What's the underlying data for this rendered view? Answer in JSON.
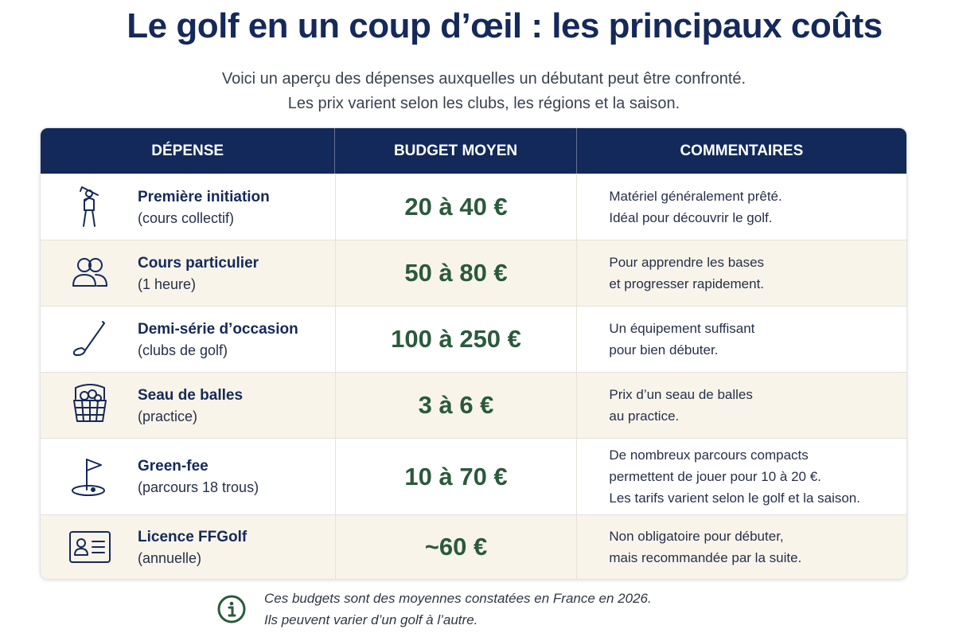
{
  "title": "Le golf en un coup d’œil : les principaux coûts",
  "subtitle": [
    "Voici un aperçu des dépenses auxquelles un débutant peut être confronté.",
    "Les prix varient selon les clubs, les régions et la saison."
  ],
  "table": {
    "headers": [
      "DÉPENSE",
      "BUDGET MOYEN",
      "COMMENTAIRES"
    ],
    "rows": [
      {
        "icon": "golfer-icon",
        "title": "Première initiation",
        "subtitle": "(cours collectif)",
        "budget": "20 à 40 €",
        "comment": [
          "Matériel généralement prêté.",
          "Idéal pour découvrir le golf."
        ]
      },
      {
        "icon": "people-icon",
        "title": "Cours particulier",
        "subtitle": "(1 heure)",
        "budget": "50 à 80 €",
        "comment": [
          "Pour apprendre les bases",
          "et progresser rapidement."
        ]
      },
      {
        "icon": "golf-club-icon",
        "title": "Demi-série d’occasion",
        "subtitle": "(clubs de golf)",
        "budget": "100 à 250 €",
        "comment": [
          "Un équipement suffisant",
          "pour bien débuter."
        ]
      },
      {
        "icon": "ball-basket-icon",
        "title": "Seau de balles",
        "subtitle": "(practice)",
        "budget": "3 à 6 €",
        "comment": [
          "Prix d’un seau de balles",
          "au practice."
        ]
      },
      {
        "icon": "flag-hole-icon",
        "title": "Green-fee",
        "subtitle": "(parcours 18 trous)",
        "budget": "10 à 70 €",
        "comment": [
          "De nombreux parcours compacts",
          "permettent de jouer pour 10 à 20 €.",
          "Les tarifs varient selon le golf et la saison."
        ]
      },
      {
        "icon": "id-card-icon",
        "title": "Licence FFGolf",
        "subtitle": "(annuelle)",
        "budget": "~60 €",
        "comment": [
          "Non obligatoire pour débuter,",
          "mais recommandée par la suite."
        ]
      }
    ]
  },
  "note": {
    "icon": "info-icon",
    "lines": [
      "Ces budgets sont des moyennes constatées en France en 2026.",
      "Ils peuvent varier d’un golf à l’autre."
    ]
  },
  "colors": {
    "header_bg": "#12295a",
    "title": "#15295a",
    "budget": "#2a5a3c",
    "row_alt": "#f8f4ea"
  }
}
